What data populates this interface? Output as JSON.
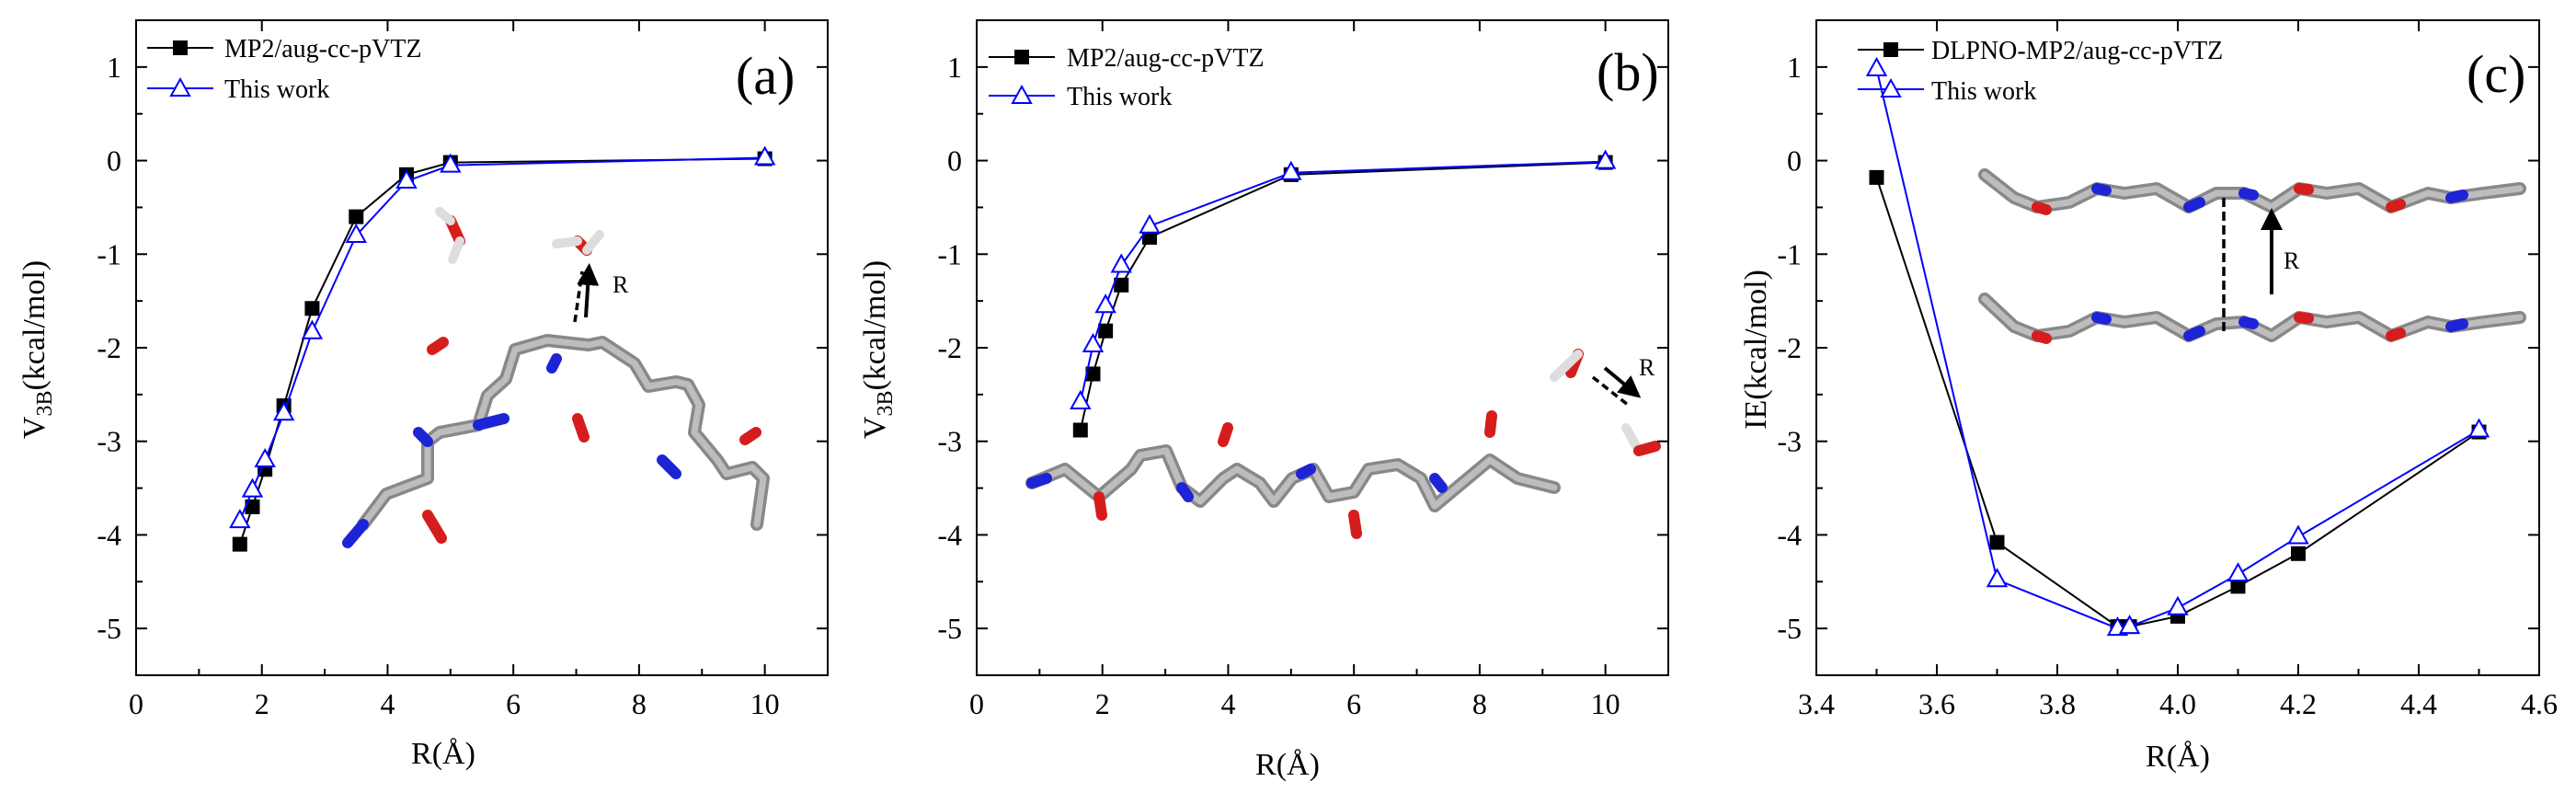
{
  "chart_data": [
    {
      "panel_label": "(a)",
      "type": "line",
      "xlabel": "R(Å)",
      "ylabel": {
        "main": "V",
        "sub": "3B",
        "unit": "(kcal/mol)"
      },
      "xlim": [
        0,
        11
      ],
      "ylim": [
        -5.5,
        1.5
      ],
      "xticks": [
        0,
        2,
        4,
        6,
        8,
        10
      ],
      "yticks": [
        -5,
        -4,
        -3,
        -2,
        -1,
        0,
        1
      ],
      "xtick_labels": [
        "0",
        "2",
        "4",
        "6",
        "8",
        "10"
      ],
      "ytick_labels": [
        "-5",
        "-4",
        "-3",
        "-2",
        "-1",
        "0",
        "1"
      ],
      "series": [
        {
          "name": "MP2/aug-cc-pVTZ",
          "color": "#000000",
          "marker": "square",
          "x": [
            1.65,
            1.85,
            2.05,
            2.35,
            2.8,
            3.5,
            4.3,
            5.0,
            10.0
          ],
          "y": [
            -4.1,
            -3.7,
            -3.3,
            -2.62,
            -1.58,
            -0.6,
            -0.15,
            -0.02,
            0.02
          ]
        },
        {
          "name": "This work",
          "color": "#0000ff",
          "marker": "triangle",
          "x": [
            1.65,
            1.85,
            2.05,
            2.35,
            2.8,
            3.5,
            4.3,
            5.0,
            10.0
          ],
          "y": [
            -3.85,
            -3.52,
            -3.2,
            -2.7,
            -1.83,
            -0.8,
            -0.22,
            -0.05,
            0.03
          ]
        }
      ],
      "annotations": [
        "R"
      ]
    },
    {
      "panel_label": "(b)",
      "type": "line",
      "xlabel": "R(Å)",
      "ylabel": {
        "main": "V",
        "sub": "3B",
        "unit": "(kcal/mol)"
      },
      "xlim": [
        0,
        11
      ],
      "ylim": [
        -5.5,
        1.5
      ],
      "xticks": [
        0,
        2,
        4,
        6,
        8,
        10
      ],
      "yticks": [
        -5,
        -4,
        -3,
        -2,
        -1,
        0,
        1
      ],
      "xtick_labels": [
        "0",
        "2",
        "4",
        "6",
        "8",
        "10"
      ],
      "ytick_labels": [
        "-5",
        "-4",
        "-3",
        "-2",
        "-1",
        "0",
        "1"
      ],
      "series": [
        {
          "name": "MP2/aug-cc-pVTZ",
          "color": "#000000",
          "marker": "square",
          "x": [
            1.65,
            1.85,
            2.05,
            2.3,
            2.75,
            5.0,
            10.0
          ],
          "y": [
            -2.88,
            -2.28,
            -1.82,
            -1.33,
            -0.82,
            -0.15,
            -0.02
          ]
        },
        {
          "name": "This work",
          "color": "#0000ff",
          "marker": "triangle",
          "x": [
            1.65,
            1.85,
            2.05,
            2.3,
            2.75,
            5.0,
            10.0
          ],
          "y": [
            -2.58,
            -1.97,
            -1.55,
            -1.12,
            -0.7,
            -0.13,
            -0.01
          ]
        }
      ],
      "annotations": [
        "R"
      ]
    },
    {
      "panel_label": "(c)",
      "type": "line",
      "xlabel": "R(Å)",
      "ylabel": {
        "main": "IE",
        "sub": "",
        "unit": "(kcal/mol)"
      },
      "xlim": [
        3.4,
        4.6
      ],
      "ylim": [
        -5.5,
        1.5
      ],
      "xticks": [
        3.4,
        3.6,
        3.8,
        4.0,
        4.2,
        4.4,
        4.6
      ],
      "yticks": [
        -5,
        -4,
        -3,
        -2,
        -1,
        0,
        1
      ],
      "xtick_labels": [
        "3.4",
        "3.6",
        "3.8",
        "4.0",
        "4.2",
        "4.4",
        "4.6"
      ],
      "ytick_labels": [
        "-5",
        "-4",
        "-3",
        "-2",
        "-1",
        "0",
        "1"
      ],
      "series": [
        {
          "name": "DLPNO-MP2/aug-cc-pVTZ",
          "color": "#000000",
          "marker": "square",
          "x": [
            3.5,
            3.7,
            3.9,
            3.92,
            4.0,
            4.1,
            4.2,
            4.5
          ],
          "y": [
            -0.18,
            -4.08,
            -4.98,
            -4.98,
            -4.87,
            -4.55,
            -4.2,
            -2.9
          ]
        },
        {
          "name": "This work",
          "color": "#0000ff",
          "marker": "triangle",
          "x": [
            3.5,
            3.7,
            3.9,
            3.92,
            4.0,
            4.1,
            4.2,
            4.5
          ],
          "y": [
            0.98,
            -4.48,
            -5.0,
            -4.98,
            -4.78,
            -4.42,
            -4.02,
            -2.88
          ]
        }
      ],
      "annotations": [
        "R"
      ]
    }
  ]
}
